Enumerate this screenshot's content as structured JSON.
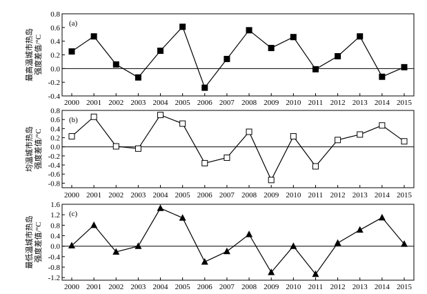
{
  "chart_data": [
    {
      "type": "line",
      "panel_label": "(a)",
      "ylabel": [
        "最高温城市热岛",
        "强度差值/°C"
      ],
      "x": [
        "2000",
        "2001",
        "2002",
        "2003",
        "2004",
        "2005",
        "2006",
        "2007",
        "2008",
        "2009",
        "2010",
        "2011",
        "2012",
        "2013",
        "2014",
        "2015"
      ],
      "values": [
        0.25,
        0.47,
        0.06,
        -0.13,
        0.26,
        0.61,
        -0.28,
        0.14,
        0.56,
        0.3,
        0.46,
        -0.01,
        0.18,
        0.47,
        -0.12,
        0.02
      ],
      "ylim": [
        -0.4,
        0.8
      ],
      "yticks": [
        "0.8",
        "0.6",
        "0.4",
        "0.2",
        "0.0",
        "-0.2",
        "-0.4"
      ],
      "marker": "filled-square",
      "reference_line": 0
    },
    {
      "type": "line",
      "panel_label": "(b)",
      "ylabel": [
        "均温城市热岛",
        "强度差值/°C"
      ],
      "x": [
        "2000",
        "2001",
        "2002",
        "2003",
        "2004",
        "2005",
        "2006",
        "2007",
        "2008",
        "2009",
        "2010",
        "2011",
        "2012",
        "2013",
        "2014",
        "2015"
      ],
      "values": [
        0.23,
        0.66,
        0.01,
        -0.04,
        0.7,
        0.51,
        -0.36,
        -0.24,
        0.33,
        -0.73,
        0.23,
        -0.43,
        0.15,
        0.27,
        0.47,
        0.12
      ],
      "ylim": [
        -0.9,
        0.8
      ],
      "yticks": [
        "0.8",
        "0.6",
        "0.4",
        "0.2",
        "0.0",
        "-0.2",
        "-0.4",
        "-0.6",
        "-0.8"
      ],
      "marker": "open-square",
      "reference_line": 0
    },
    {
      "type": "line",
      "panel_label": "(c)",
      "ylabel": [
        "最低温城市热岛",
        "强度差值/°C"
      ],
      "x": [
        "2000",
        "2001",
        "2002",
        "2003",
        "2004",
        "2005",
        "2006",
        "2007",
        "2008",
        "2009",
        "2010",
        "2011",
        "2012",
        "2013",
        "2014",
        "2015"
      ],
      "values": [
        0.02,
        0.8,
        -0.22,
        0.0,
        1.45,
        1.08,
        -0.6,
        -0.2,
        0.45,
        -1.0,
        0.0,
        -1.07,
        0.12,
        0.62,
        1.09,
        0.08
      ],
      "ylim": [
        -1.3,
        1.6
      ],
      "yticks": [
        "1.6",
        "1.2",
        "0.8",
        "0.4",
        "0.0",
        "-0.4",
        "-0.8",
        "-1.2"
      ],
      "marker": "filled-triangle",
      "reference_line": 0
    }
  ]
}
